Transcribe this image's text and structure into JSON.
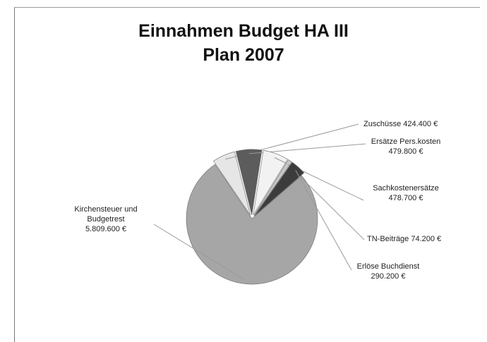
{
  "chart_data": {
    "type": "pie",
    "title": "Einnahmen Budget HA III",
    "subtitle": "Plan 2007",
    "slices": [
      {
        "label_lines": [
          "Kirchensteuer und",
          "Budgetrest",
          "5.809.600 €"
        ],
        "value": 5809600,
        "color": "#a6a6a6"
      },
      {
        "label_lines": [
          "Zuschüsse 424.400 €"
        ],
        "value": 424400,
        "color": "#e6e6e6"
      },
      {
        "label_lines": [
          "Ersätze Pers.kosten",
          "479.800 €"
        ],
        "value": 479800,
        "color": "#5c5c5c"
      },
      {
        "label_lines": [
          "Sachkostenersätze",
          "478.700 €"
        ],
        "value": 478700,
        "color": "#f2f2f2"
      },
      {
        "label_lines": [
          "TN-Beiträge 74.200 €"
        ],
        "value": 74200,
        "color": "#c8c8c8"
      },
      {
        "label_lines": [
          "Erlöse Buchdienst",
          "290.200 €"
        ],
        "value": 290200,
        "color": "#3c3c3c"
      }
    ]
  }
}
